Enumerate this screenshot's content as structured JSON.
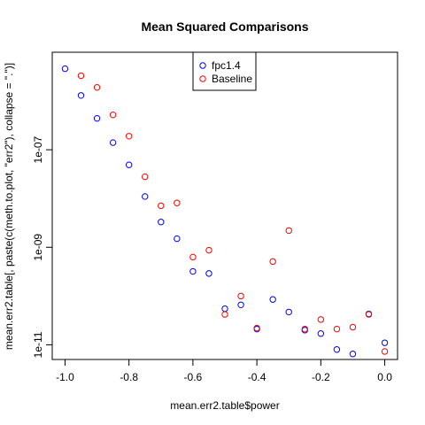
{
  "chart_data": {
    "type": "scatter",
    "title": "Mean Squared Comparisons",
    "xlabel": "mean.err2.table$power",
    "ylabel": "mean.err2.table[, paste(c(meth.to.plot, \"err2\"), collapse = \".\")]",
    "x_scale": "linear",
    "y_scale": "log",
    "xlim": [
      -1.04,
      0.04
    ],
    "ylim": [
      5e-12,
      1e-05
    ],
    "x_ticks": [
      -1.0,
      -0.8,
      -0.6,
      -0.4,
      -0.2,
      0.0
    ],
    "x_tick_labels": [
      "-1.0",
      "-0.8",
      "-0.6",
      "-0.4",
      "-0.2",
      "0.0"
    ],
    "y_ticks": [
      1e-07,
      1e-09,
      1e-11
    ],
    "y_tick_labels": [
      "1e-07",
      "1e-09",
      "1e-11"
    ],
    "grid": false,
    "legend_position": "top-center",
    "series": [
      {
        "name": "fpc1.4",
        "color": "#0000ff",
        "marker": "open-circle",
        "x": [
          -1.0,
          -0.95,
          -0.9,
          -0.85,
          -0.8,
          -0.75,
          -0.7,
          -0.65,
          -0.6,
          -0.55,
          -0.5,
          -0.45,
          -0.4,
          -0.35,
          -0.3,
          -0.25,
          -0.2,
          -0.15,
          -0.1,
          -0.05,
          0.0
        ],
        "y": [
          4.6e-06,
          1.3e-06,
          4.4e-07,
          1.4e-07,
          4.9e-08,
          1.1e-08,
          3.3e-09,
          1.5e-09,
          3.2e-10,
          2.9e-10,
          5.5e-11,
          6.6e-11,
          2.1e-11,
          8.5e-11,
          4.7e-11,
          2e-11,
          1.7e-11,
          8e-12,
          6.5e-12,
          4.3e-11,
          1.1e-11
        ]
      },
      {
        "name": "Baseline",
        "color": "#ff0000",
        "marker": "open-circle",
        "x": [
          -0.95,
          -0.9,
          -0.85,
          -0.8,
          -0.75,
          -0.7,
          -0.65,
          -0.6,
          -0.55,
          -0.5,
          -0.45,
          -0.4,
          -0.35,
          -0.3,
          -0.25,
          -0.2,
          -0.15,
          -0.1,
          -0.05,
          0.0
        ],
        "y": [
          3.3e-06,
          1.9e-06,
          5.2e-07,
          1.9e-07,
          2.8e-08,
          7.1e-09,
          8.1e-09,
          6.3e-10,
          8.7e-10,
          4.2e-11,
          1e-10,
          2.2e-11,
          5.1e-10,
          2.2e-09,
          2.1e-11,
          3.3e-11,
          2.1e-11,
          2.3e-11,
          4.2e-11,
          7.3e-12
        ]
      }
    ]
  }
}
